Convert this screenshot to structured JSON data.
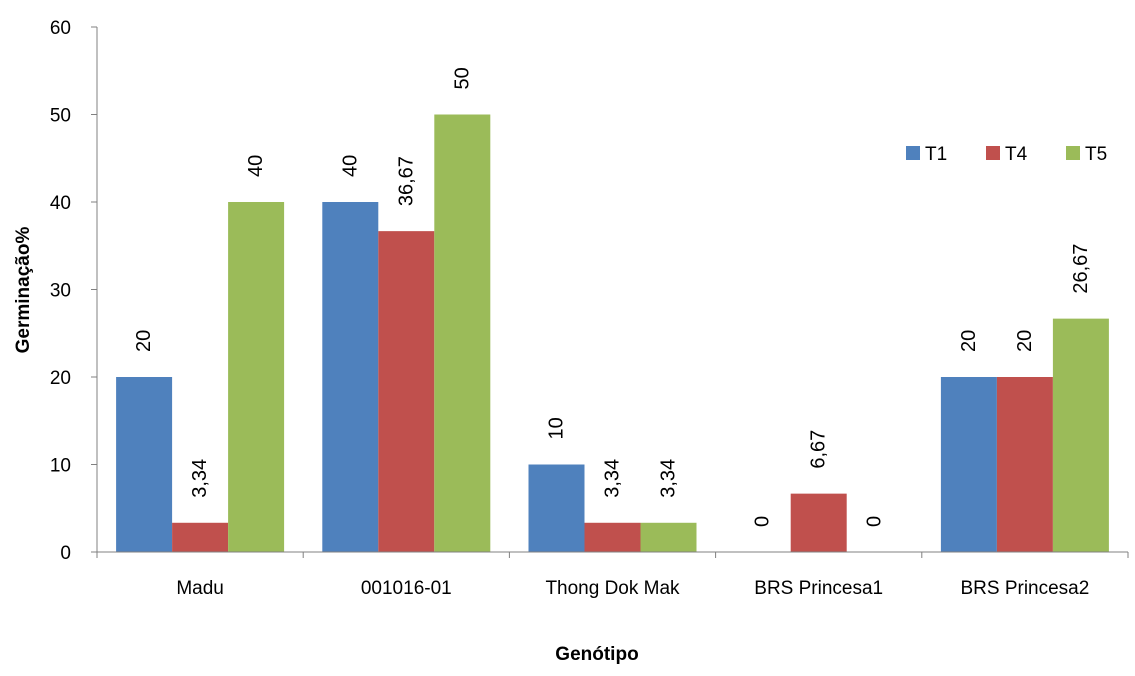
{
  "chart_data": {
    "type": "bar",
    "categories": [
      "Madu",
      "001016-01",
      "Thong Dok Mak",
      "BRS Princesa1",
      "BRS Princesa2"
    ],
    "series": [
      {
        "name": "T1",
        "color": "#4F81BD",
        "values": [
          20,
          40,
          10,
          0,
          20
        ],
        "labels": [
          "20",
          "40",
          "10",
          "0",
          "20"
        ]
      },
      {
        "name": "T4",
        "color": "#C0504D",
        "values": [
          3.34,
          36.67,
          3.34,
          6.67,
          20
        ],
        "labels": [
          "3,34",
          "36,67",
          "3,34",
          "6,67",
          "20"
        ]
      },
      {
        "name": "T5",
        "color": "#9BBB59",
        "values": [
          40,
          50,
          3.34,
          0,
          26.67
        ],
        "labels": [
          "40",
          "50",
          "3,34",
          "0",
          "26,67"
        ]
      }
    ],
    "xlabel": "Genótipo",
    "ylabel": "Germinação%",
    "ylim": [
      0,
      60
    ],
    "yticks": [
      0,
      10,
      20,
      30,
      40,
      50,
      60
    ],
    "grid": false,
    "legend_position": "top-right"
  }
}
